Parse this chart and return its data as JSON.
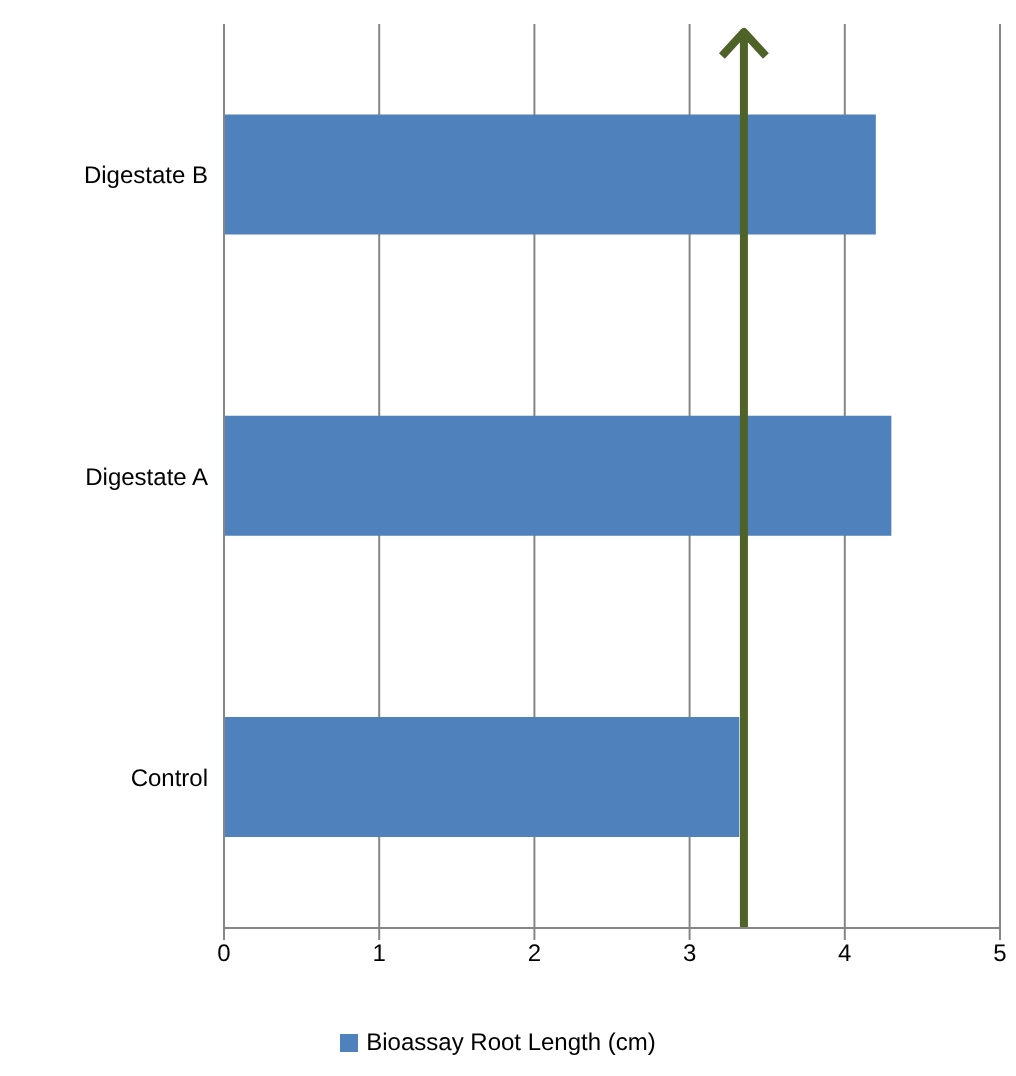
{
  "chart_data": {
    "type": "bar",
    "orientation": "horizontal",
    "categories": [
      "Digestate B",
      "Digestate A",
      "Control"
    ],
    "series": [
      {
        "name": "Bioassay Root Length (cm)",
        "color": "#4f81bd",
        "values": [
          4.2,
          4.3,
          3.32
        ]
      }
    ],
    "xlim": [
      0,
      5
    ],
    "xticks": [
      0,
      1,
      2,
      3,
      4,
      5
    ],
    "grid": "x",
    "legend": "bottom",
    "ref_lines": [
      {
        "axis": "x",
        "value": 3.35,
        "color": "#4f6228"
      }
    ]
  }
}
